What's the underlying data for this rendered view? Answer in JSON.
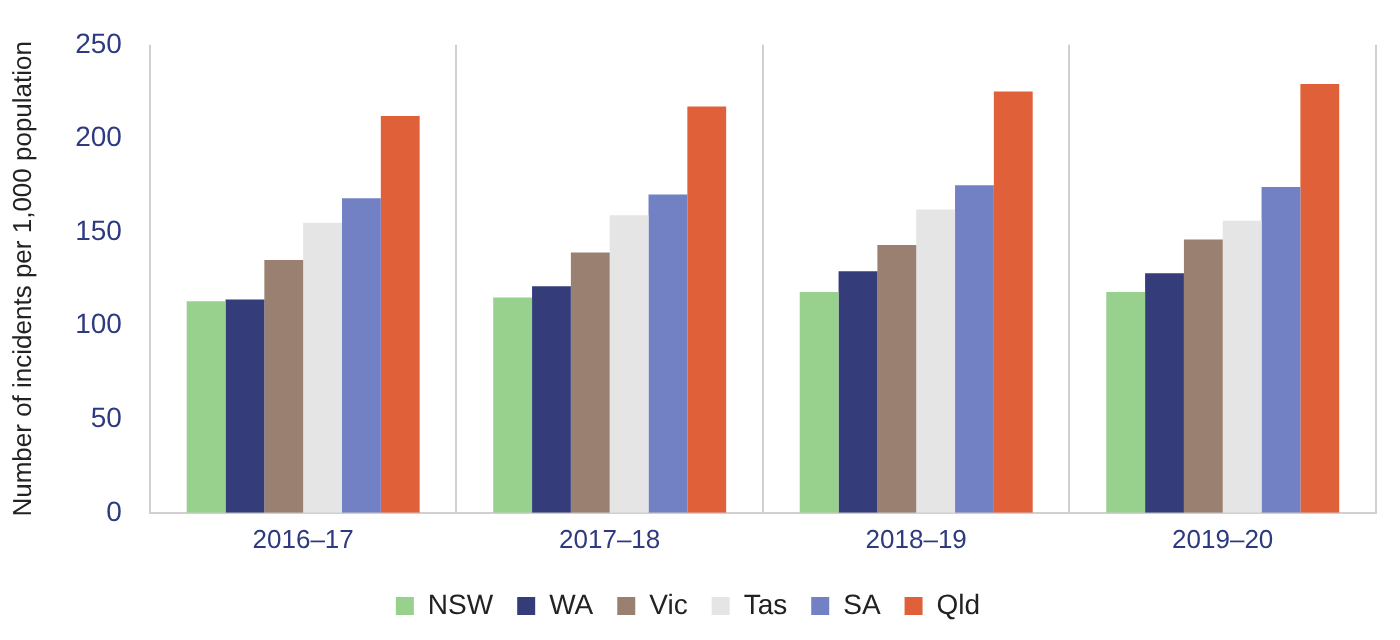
{
  "chart_data": {
    "type": "bar",
    "ylabel": "Number of incidents per 1,000 population",
    "categories": [
      "2016–17",
      "2017–18",
      "2018–19",
      "2019–20"
    ],
    "series": [
      {
        "name": "NSW",
        "color": "#98d08e",
        "values": [
          113,
          115,
          118,
          118
        ]
      },
      {
        "name": "WA",
        "color": "#343d7a",
        "values": [
          114,
          121,
          129,
          128
        ]
      },
      {
        "name": "Vic",
        "color": "#9a8070",
        "values": [
          135,
          139,
          143,
          146
        ]
      },
      {
        "name": "Tas",
        "color": "#e5e5e5",
        "values": [
          155,
          159,
          162,
          156
        ]
      },
      {
        "name": "SA",
        "color": "#7280c4",
        "values": [
          168,
          170,
          175,
          174
        ]
      },
      {
        "name": "Qld",
        "color": "#e0603a",
        "values": [
          212,
          217,
          225,
          229
        ]
      }
    ],
    "ylim": [
      0,
      250
    ],
    "yticks": [
      0,
      50,
      100,
      150,
      200,
      250
    ],
    "grid": "x",
    "legend": "bottom"
  }
}
